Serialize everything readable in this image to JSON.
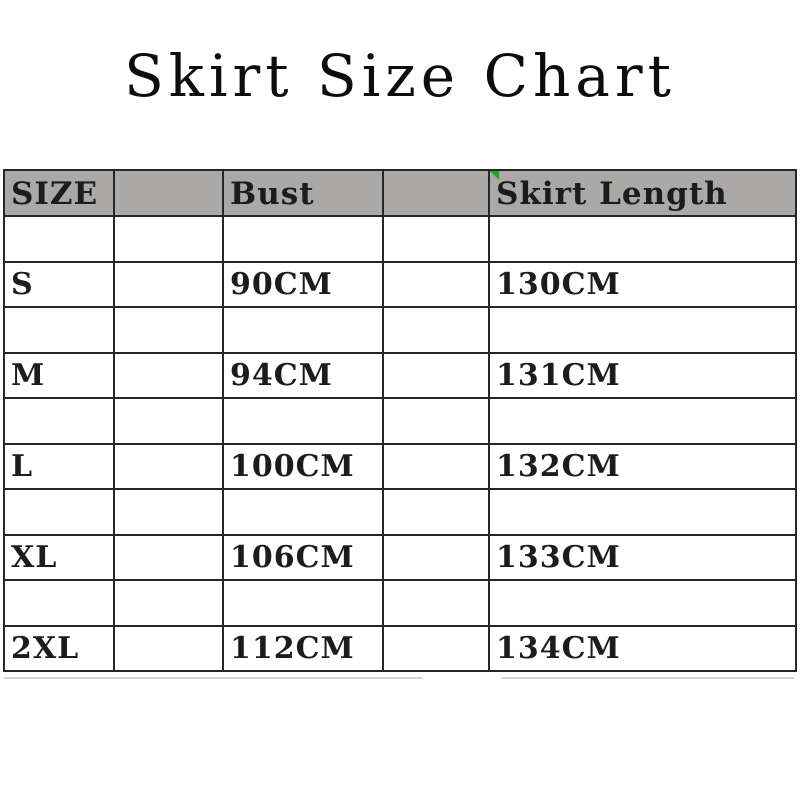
{
  "title": "Skirt Size Chart",
  "chart_data": {
    "type": "table",
    "title": "Skirt Size Chart",
    "columns": [
      "SIZE",
      "",
      "Bust",
      "",
      "Skirt Length"
    ],
    "rows": [
      [
        "S",
        "",
        "90CM",
        "",
        "130CM"
      ],
      [
        "M",
        "",
        "94CM",
        "",
        "131CM"
      ],
      [
        "L",
        "",
        "100CM",
        "",
        "132CM"
      ],
      [
        "XL",
        "",
        "106CM",
        "",
        "133CM"
      ],
      [
        "2XL",
        "",
        "112CM",
        "",
        "134CM"
      ]
    ],
    "sizes": [
      "S",
      "M",
      "L",
      "XL",
      "2XL"
    ],
    "bust_cm": [
      90,
      94,
      100,
      106,
      112
    ],
    "skirt_length_cm": [
      130,
      131,
      132,
      133,
      134
    ],
    "layout_hint": "empty spacer row between header and each data row"
  },
  "colors": {
    "background": "#ffffff",
    "header_bg": "#aba9a7",
    "grid_border": "#262626",
    "text": "#1c1c1c",
    "corner_marker_green": "#1da61d"
  }
}
